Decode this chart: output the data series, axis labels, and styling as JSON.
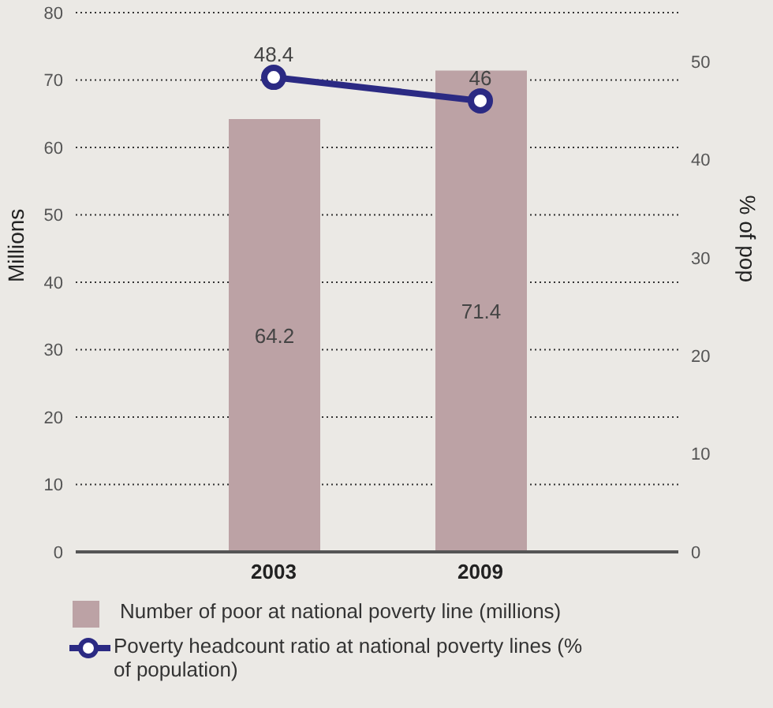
{
  "chart_data": {
    "type": "bar",
    "categories": [
      "2003",
      "2009"
    ],
    "series": [
      {
        "name": "Number of poor at national poverty line (millions)",
        "color": "#bca2a5",
        "values": [
          64.2,
          71.4
        ]
      },
      {
        "name": "Poverty headcount ratio at national poverty lines (% of population)",
        "type": "line",
        "axis": "y2",
        "color": "#2b2a83",
        "values": [
          48.4,
          46
        ]
      }
    ],
    "ylabel": "Millions",
    "y2label": "% of pop",
    "ylim": [
      0,
      80
    ],
    "yticks": [
      0,
      10,
      20,
      30,
      40,
      50,
      60,
      70,
      80
    ],
    "y2lim": [
      0,
      55
    ],
    "y2ticks": [
      0,
      10,
      20,
      30,
      40,
      50
    ],
    "grid": "y",
    "legend": "bottom",
    "data_labels": true,
    "marker": "circle",
    "line_style": "solid"
  }
}
